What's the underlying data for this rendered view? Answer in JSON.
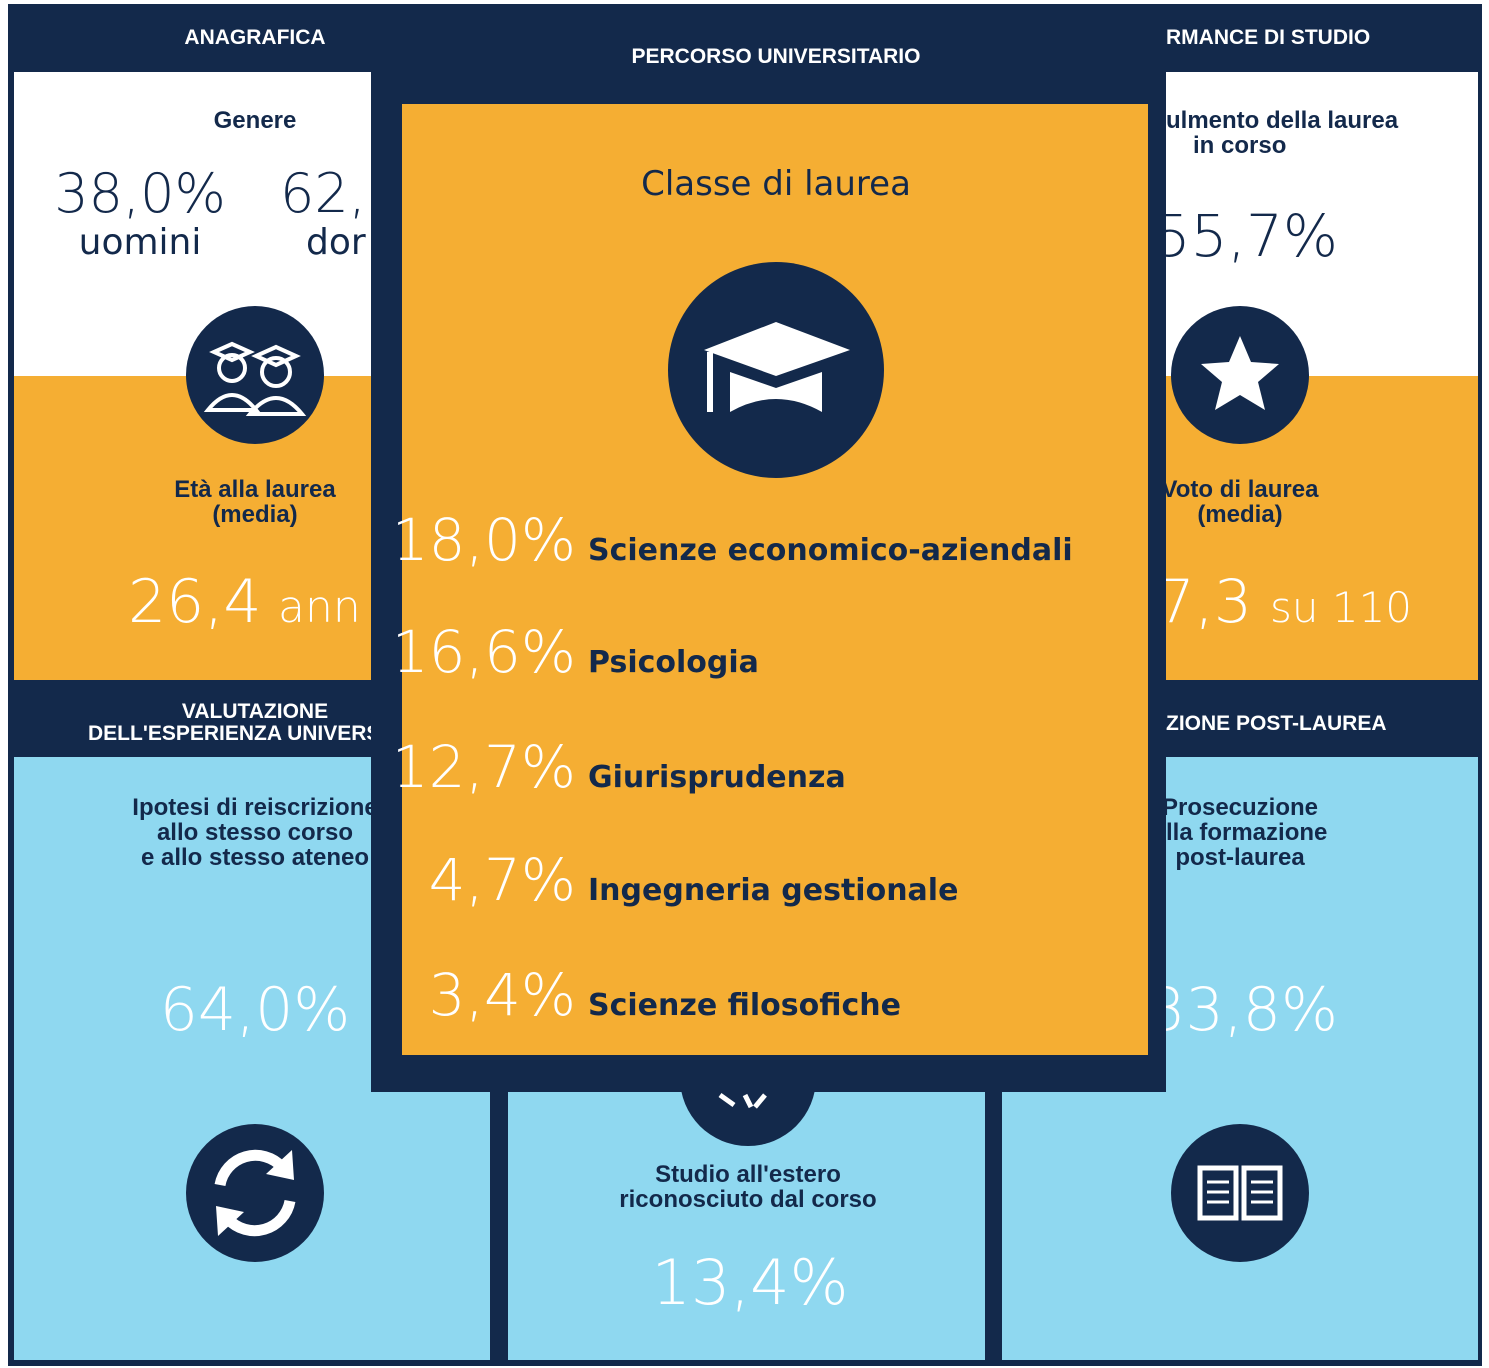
{
  "left": {
    "header": "ANAGRAFICA",
    "gender_label": "Genere",
    "men_value": "38,0%",
    "men_label": "uomini",
    "women_value": "62,",
    "women_label": "dor",
    "age_label": [
      "Età alla laurea",
      "(media)"
    ],
    "age_value": "26,4",
    "age_unit": "ann",
    "eval_header": [
      "VALUTAZIONE",
      "DELL'ESPERIENZA UNIVERSIT"
    ],
    "eval_label": [
      "Ipotesi di reiscrizione",
      "allo stesso corso",
      "e allo stesso ateneo"
    ],
    "eval_value": "64,0%"
  },
  "right": {
    "header": "RMANCE DI STUDIO",
    "ontime_label": [
      "ulmento della laurea",
      "in corso"
    ],
    "ontime_value": "55,7%",
    "grade_label": [
      "Voto di laurea",
      "(media)"
    ],
    "grade_value": "7,3",
    "grade_unit": "su 110",
    "post_header": "ZIONE POST-LAUREA",
    "post_label": [
      "Prosecuzione",
      "ella formazione",
      "post-laurea"
    ],
    "post_value": "33,8%"
  },
  "middle_bottom": {
    "abroad_label": [
      "Studio all'estero",
      "riconosciuto dal corso"
    ],
    "abroad_value": "13,4%"
  },
  "popup": {
    "title": "PERCORSO UNIVERSITARIO",
    "subtitle": "Classe di laurea",
    "items": [
      {
        "value": "18,0%",
        "label": "Scienze economico-aziendali"
      },
      {
        "value": "16,6%",
        "label": "Psicologia"
      },
      {
        "value": "12,7%",
        "label": "Giurisprudenza"
      },
      {
        "value": "4,7%",
        "label": "Ingegneria gestionale"
      },
      {
        "value": "3,4%",
        "label": "Scienze filosofiche"
      }
    ]
  }
}
